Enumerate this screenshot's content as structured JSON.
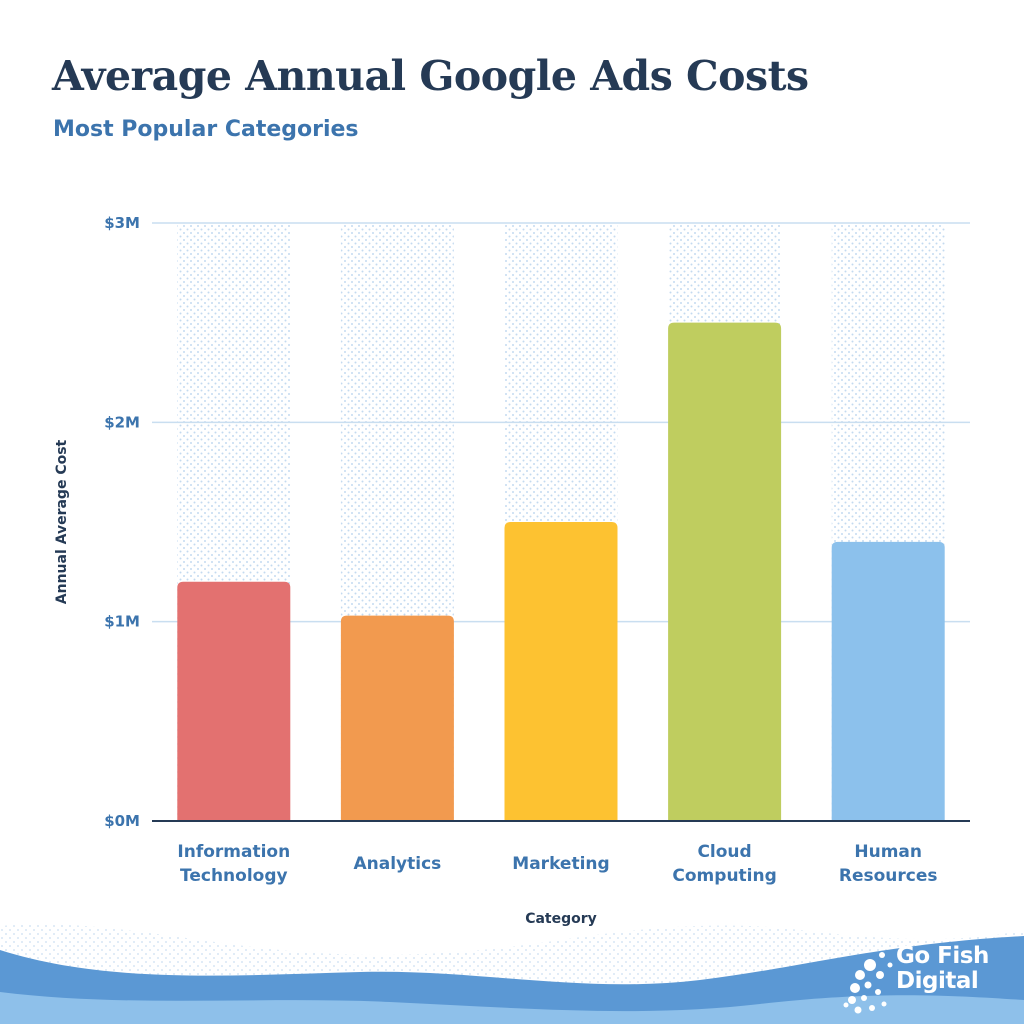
{
  "header": {
    "title": "Average Annual Google Ads Costs",
    "subtitle": "Most Popular Categories"
  },
  "brand": {
    "line1": "Go Fish",
    "line2": "Digital",
    "logo_icon": "fish-school-logo-icon"
  },
  "colors": {
    "title": "#253a55",
    "accent": "#3c74ad",
    "grid": "#c9def0",
    "wave_dark": "#5b98d4",
    "wave_light": "#8ec0ea"
  },
  "chart_data": {
    "type": "bar",
    "title": "Average Annual Google Ads Costs",
    "subtitle": "Most Popular Categories",
    "xlabel": "Category",
    "ylabel": "Annual Average Cost",
    "categories": [
      [
        "Information",
        "Technology"
      ],
      [
        "Analytics"
      ],
      [
        "Marketing"
      ],
      [
        "Cloud",
        "Computing"
      ],
      [
        "Human",
        "Resources"
      ]
    ],
    "values": [
      1.2,
      1.03,
      1.5,
      2.5,
      1.4
    ],
    "unit": "$M",
    "bar_colors": [
      "#e37170",
      "#f29a4f",
      "#fdc231",
      "#bfcd5f",
      "#8cc1ec"
    ],
    "yticks": [
      {
        "value": 0,
        "label": "$0M"
      },
      {
        "value": 1,
        "label": "$1M"
      },
      {
        "value": 2,
        "label": "$2M"
      },
      {
        "value": 3,
        "label": "$3M"
      }
    ],
    "ylim": [
      0,
      3
    ],
    "grid": true,
    "legend": "none"
  }
}
